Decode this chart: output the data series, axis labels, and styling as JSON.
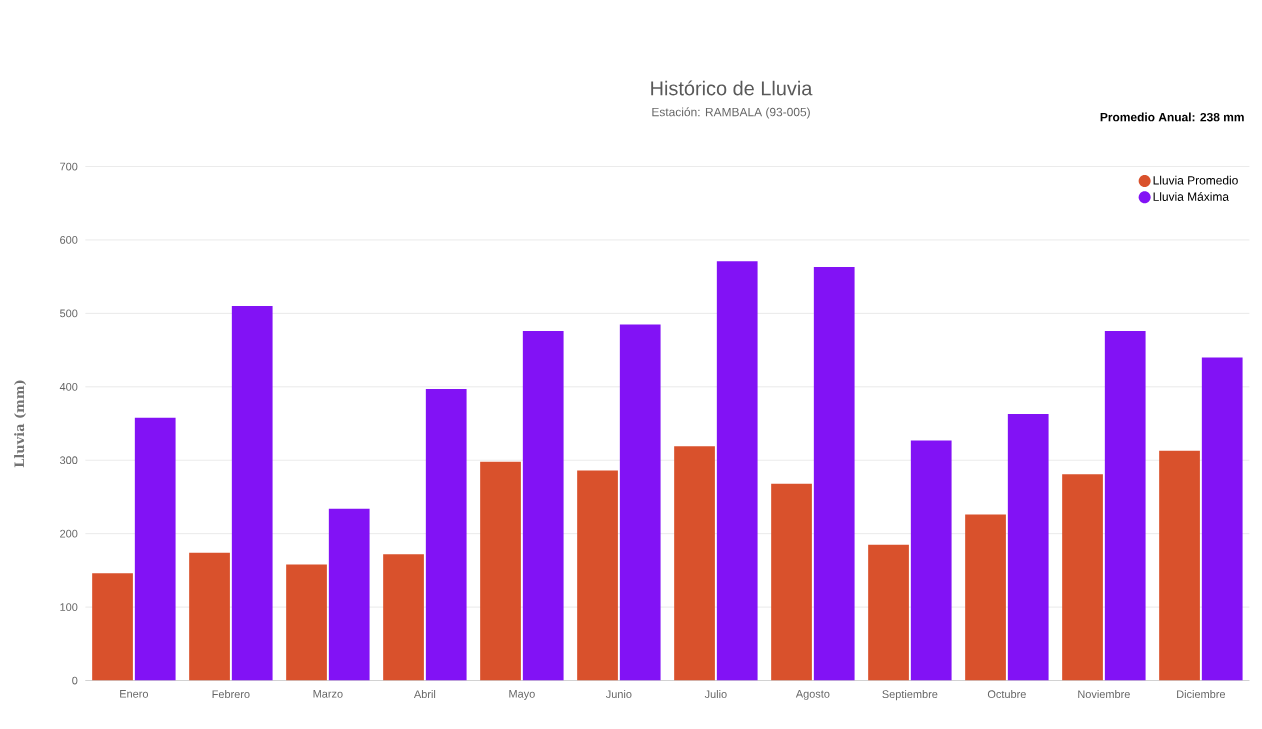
{
  "chart_data": {
    "type": "bar",
    "title": "Histórico de Lluvia",
    "subtitle": "Estación: RAMBALA (93-005)",
    "ylabel": "Lluvia (mm)",
    "legend_title": "Promedio Anual: 238 mm",
    "categories": [
      "Enero",
      "Febrero",
      "Marzo",
      "Abril",
      "Mayo",
      "Junio",
      "Julio",
      "Agosto",
      "Septiembre",
      "Octubre",
      "Noviembre",
      "Diciembre"
    ],
    "series": [
      {
        "name": "Lluvia Promedio",
        "color": "#d9512c",
        "values": [
          146,
          174,
          158,
          172,
          298,
          286,
          319,
          268,
          185,
          226,
          281,
          313
        ]
      },
      {
        "name": "Lluvia Máxima",
        "color": "#8212f5",
        "values": [
          358,
          510,
          234,
          397,
          476,
          485,
          571,
          563,
          327,
          363,
          476,
          440
        ]
      }
    ],
    "ylim": [
      0,
      700
    ],
    "yticks": [
      0,
      100,
      200,
      300,
      400,
      500,
      600,
      700
    ],
    "grid": "y",
    "legend": "top right"
  }
}
